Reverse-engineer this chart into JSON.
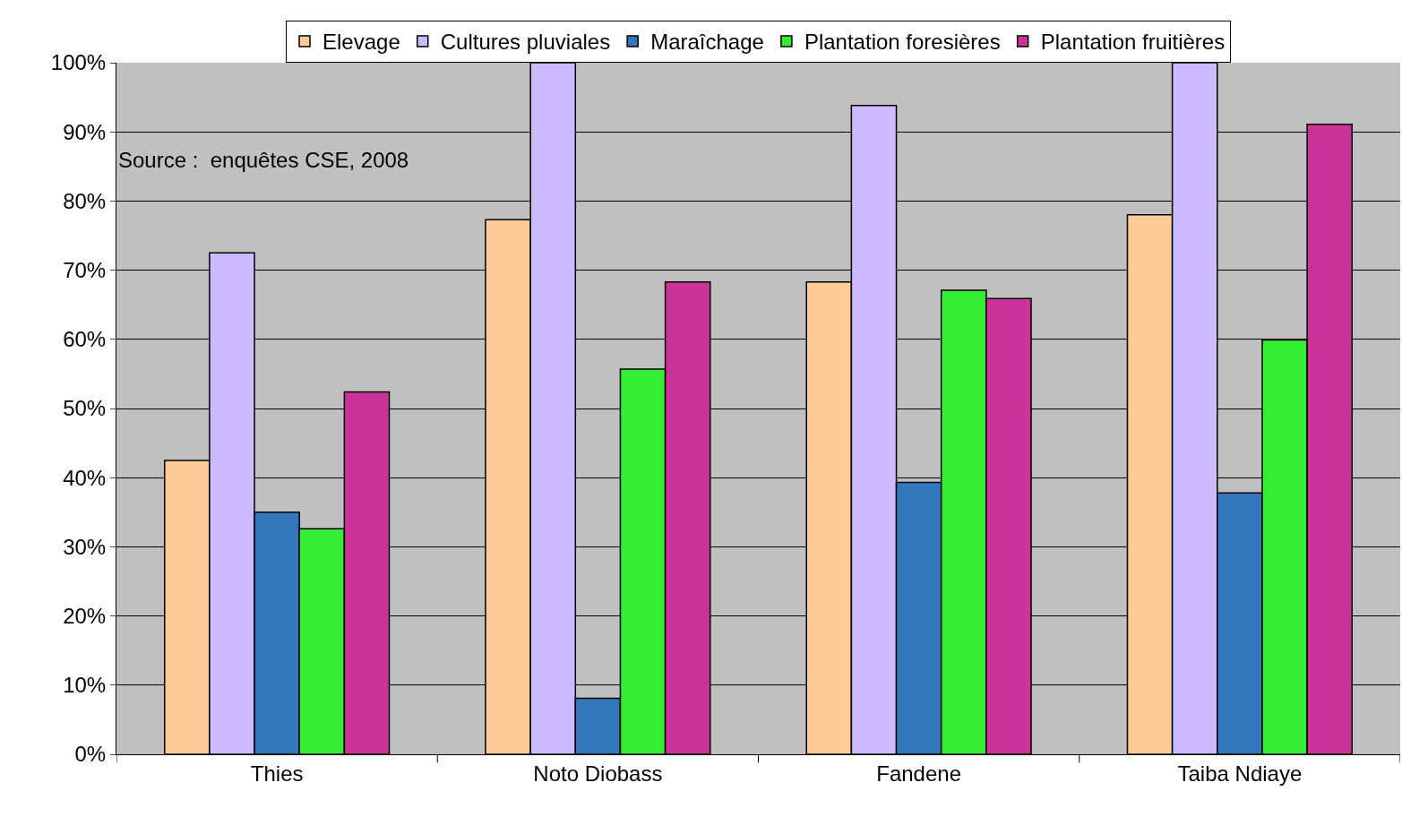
{
  "chart_data": {
    "type": "bar",
    "categories": [
      "Thies",
      "Noto Diobass",
      "Fandene",
      "Taiba Ndiaye"
    ],
    "series": [
      {
        "name": "Elevage",
        "color": "#ffcc99",
        "values": [
          42.5,
          77.3,
          68.3,
          78.0
        ]
      },
      {
        "name": "Cultures pluviales",
        "color": "#ccbbff",
        "values": [
          72.5,
          100,
          93.8,
          100
        ]
      },
      {
        "name": "Maraîchage",
        "color": "#3377bb",
        "values": [
          35.0,
          8.1,
          39.3,
          37.8
        ]
      },
      {
        "name": "Plantation foresières",
        "color": "#33ee33",
        "values": [
          32.6,
          55.7,
          67.1,
          59.9
        ]
      },
      {
        "name": "Plantation fruitières",
        "color": "#cc3399",
        "values": [
          52.4,
          68.3,
          65.9,
          91.1
        ]
      }
    ],
    "ylim": [
      0,
      100
    ],
    "yticks": [
      {
        "value": 0,
        "label": "0%"
      },
      {
        "value": 10,
        "label": "10%"
      },
      {
        "value": 20,
        "label": "20%"
      },
      {
        "value": 30,
        "label": "30%"
      },
      {
        "value": 40,
        "label": "40%"
      },
      {
        "value": 50,
        "label": "50%"
      },
      {
        "value": 60,
        "label": "60%"
      },
      {
        "value": 70,
        "label": "70%"
      },
      {
        "value": 80,
        "label": "80%"
      },
      {
        "value": 90,
        "label": "90%"
      },
      {
        "value": 100,
        "label": "100%"
      }
    ],
    "grid": "y",
    "legend": "top",
    "annotations": [
      "Source :  enquêtes CSE, 2008"
    ]
  }
}
